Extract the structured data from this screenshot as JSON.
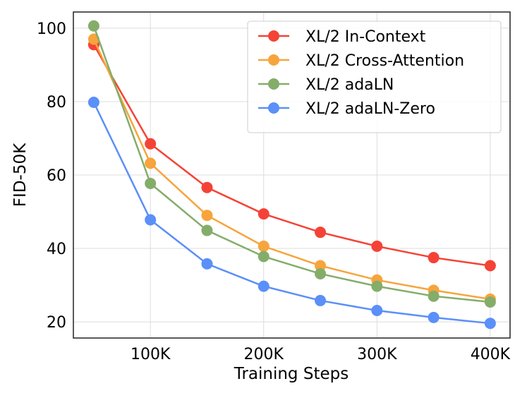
{
  "chart_data": {
    "type": "line",
    "xlabel": "Training Steps",
    "ylabel": "FID-50K",
    "x": [
      50000,
      100000,
      150000,
      200000,
      250000,
      300000,
      350000,
      400000
    ],
    "xlim": [
      32000,
      417500
    ],
    "ylim": [
      15.6,
      104.4
    ],
    "xticks": [
      100000,
      200000,
      300000,
      400000
    ],
    "xtick_labels": [
      "100K",
      "200K",
      "300K",
      "400K"
    ],
    "yticks": [
      20,
      40,
      60,
      80,
      100
    ],
    "ytick_labels": [
      "20",
      "40",
      "60",
      "80",
      "100"
    ],
    "grid": true,
    "legend_position": "top-right",
    "series": [
      {
        "name": "XL/2 In-Context",
        "color": "#f44336",
        "values": [
          95.5,
          68.5,
          56.6,
          49.4,
          44.4,
          40.6,
          37.5,
          35.3
        ]
      },
      {
        "name": "XL/2 Cross-Attention",
        "color": "#f7a43c",
        "values": [
          97.0,
          63.2,
          49.0,
          40.6,
          35.3,
          31.4,
          28.6,
          26.2
        ]
      },
      {
        "name": "XL/2 adaLN",
        "color": "#84ad6a",
        "values": [
          100.6,
          57.7,
          44.9,
          37.8,
          33.1,
          29.7,
          27.0,
          25.4
        ]
      },
      {
        "name": "XL/2 adaLN-Zero",
        "color": "#5b8ff9",
        "values": [
          79.8,
          47.8,
          35.8,
          29.7,
          25.8,
          23.1,
          21.2,
          19.6
        ]
      }
    ]
  }
}
